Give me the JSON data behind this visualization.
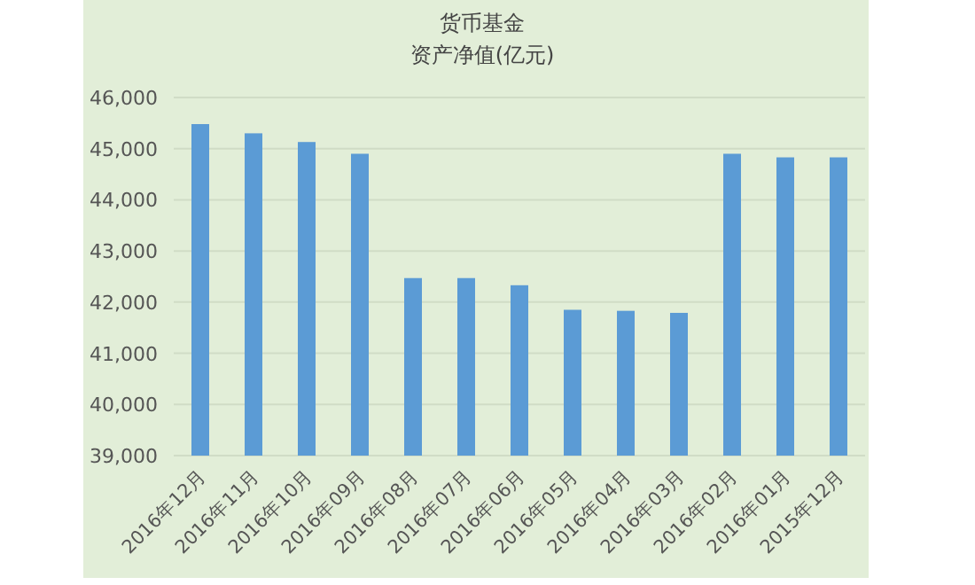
{
  "chart_data": {
    "type": "bar",
    "title": "货币基金",
    "subtitle": "资产净值(亿元)",
    "categories": [
      "2016年12月",
      "2016年11月",
      "2016年10月",
      "2016年09月",
      "2016年08月",
      "2016年07月",
      "2016年06月",
      "2016年05月",
      "2016年04月",
      "2016年03月",
      "2016年02月",
      "2016年01月",
      "2015年12月"
    ],
    "values": [
      45480,
      45300,
      45130,
      44900,
      42470,
      42470,
      42330,
      41850,
      41830,
      41790,
      44900,
      44830,
      44830
    ],
    "color": "#5b9bd5",
    "ylim": [
      39000,
      46000
    ],
    "yticks": [
      {
        "value": 39000,
        "label": "39,000"
      },
      {
        "value": 40000,
        "label": "40,000"
      },
      {
        "value": 41000,
        "label": "41,000"
      },
      {
        "value": 42000,
        "label": "42,000"
      },
      {
        "value": 43000,
        "label": "43,000"
      },
      {
        "value": 44000,
        "label": "44,000"
      },
      {
        "value": 45000,
        "label": "45,000"
      },
      {
        "value": 46000,
        "label": "46,000"
      }
    ],
    "grid": "y"
  }
}
